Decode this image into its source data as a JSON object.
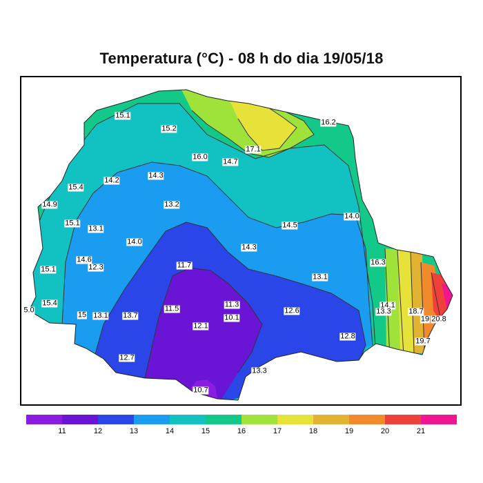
{
  "title": "Temperatura (°C) - 08 h do dia 19/05/18",
  "legend": {
    "colors": [
      "#8b1de0",
      "#6a14d6",
      "#2b46e8",
      "#1a9cf0",
      "#12c2c2",
      "#12c98a",
      "#9ee23a",
      "#e6e23a",
      "#e2b233",
      "#f08a2a",
      "#f0403a",
      "#f01590"
    ],
    "ticks": [
      "11",
      "12",
      "13",
      "14",
      "15",
      "16",
      "17",
      "18",
      "19",
      "20",
      "21"
    ]
  },
  "labels": [
    {
      "text": "15.1"
    },
    {
      "text": "15.2"
    },
    {
      "text": "16.2"
    },
    {
      "text": "17.1"
    },
    {
      "text": "16.0"
    },
    {
      "text": "14.7"
    },
    {
      "text": "14.2"
    },
    {
      "text": "14.3"
    },
    {
      "text": "15.4"
    },
    {
      "text": "14.9"
    },
    {
      "text": "13.2"
    },
    {
      "text": "15.1"
    },
    {
      "text": "13.1"
    },
    {
      "text": "14.5"
    },
    {
      "text": "14.0"
    },
    {
      "text": "14.0"
    },
    {
      "text": "14.3"
    },
    {
      "text": "14.6"
    },
    {
      "text": "12.3"
    },
    {
      "text": "11.7"
    },
    {
      "text": "16.3"
    },
    {
      "text": "15.1"
    },
    {
      "text": "13.1"
    },
    {
      "text": "15.4"
    },
    {
      "text": "5.0"
    },
    {
      "text": "15"
    },
    {
      "text": "13.1"
    },
    {
      "text": "13.7"
    },
    {
      "text": "11.5"
    },
    {
      "text": "11.3"
    },
    {
      "text": "10.1"
    },
    {
      "text": "12.1"
    },
    {
      "text": "12.6"
    },
    {
      "text": "14.1"
    },
    {
      "text": "13.3"
    },
    {
      "text": "18.7"
    },
    {
      "text": "19"
    },
    {
      "text": "20.8"
    },
    {
      "text": "12.8"
    },
    {
      "text": "19.7"
    },
    {
      "text": "12.7"
    },
    {
      "text": "13.3"
    },
    {
      "text": "10.7"
    }
  ]
}
